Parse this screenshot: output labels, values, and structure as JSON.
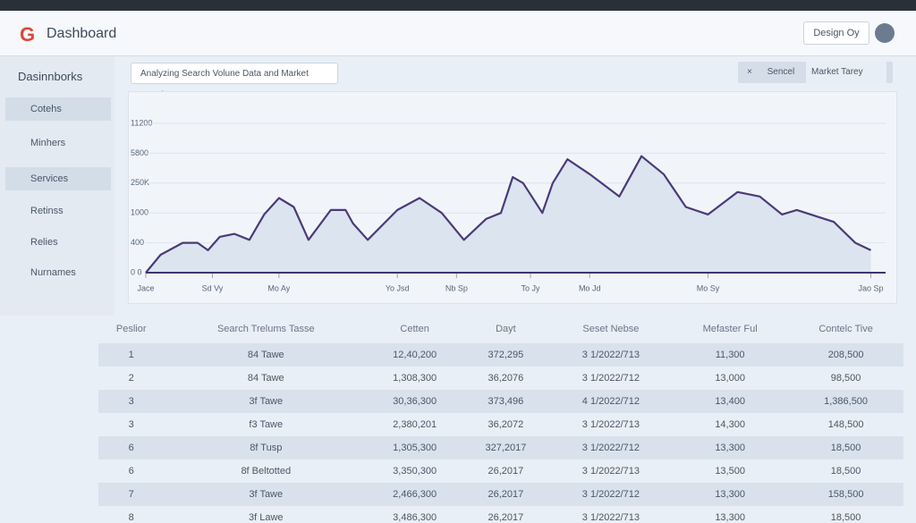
{
  "header": {
    "logo": "G",
    "title": "Dashboard",
    "account": "Design Oy"
  },
  "sidebar": {
    "title": "Dasinnborks",
    "items": [
      "Cotehs",
      "Minhers",
      "Services",
      "Retinss",
      "Relies",
      "Nurnames"
    ]
  },
  "toolbar": {
    "dropdown": "Analyzing Search Volune Data and Market Trends",
    "close": "×",
    "search": "Sencel",
    "filter": "Market Tarey"
  },
  "chart_data": {
    "type": "line",
    "color": "#4b3a78",
    "fill": "#dbe4ef",
    "x": [
      0,
      2,
      5,
      7,
      8.4,
      10,
      12,
      14,
      16,
      18,
      20,
      22,
      25,
      27,
      28,
      30,
      34,
      37,
      40,
      43,
      46,
      48,
      49.6,
      51,
      53.6,
      55,
      57,
      60,
      64,
      67,
      70,
      73,
      76,
      80,
      83,
      86,
      88,
      93,
      95.9,
      98
    ],
    "values": [
      0,
      0.6,
      1.0,
      1.0,
      0.75,
      1.2,
      1.3,
      1.1,
      1.95,
      2.5,
      2.2,
      1.1,
      2.1,
      2.1,
      1.65,
      1.1,
      2.1,
      2.5,
      2.0,
      1.1,
      1.8,
      2.0,
      3.2,
      3.0,
      2.0,
      3.0,
      3.8,
      3.3,
      2.55,
      3.9,
      3.3,
      2.2,
      1.95,
      2.7,
      2.55,
      1.95,
      2.1,
      1.7,
      1.0,
      0.75
    ],
    "xlim": [
      0,
      100
    ],
    "xticks": [
      {
        "value": 0,
        "label": "Jace"
      },
      {
        "value": 9,
        "label": "Sd Vy"
      },
      {
        "value": 18,
        "label": "Mo Ay"
      },
      {
        "value": 34,
        "label": "Yo Jsd"
      },
      {
        "value": 42,
        "label": "Nb Sp"
      },
      {
        "value": 52,
        "label": "To Jy"
      },
      {
        "value": 60,
        "label": "Mo Jd"
      },
      {
        "value": 76,
        "label": "Mo Sy"
      },
      {
        "value": 98,
        "label": "Jao Sp"
      }
    ],
    "ylim": [
      0,
      5.5
    ],
    "yticks": [
      {
        "value": 0,
        "label": "0 0"
      },
      {
        "value": 1,
        "label": "400"
      },
      {
        "value": 2,
        "label": "1000"
      },
      {
        "value": 3,
        "label": "250K"
      },
      {
        "value": 4,
        "label": "5800"
      },
      {
        "value": 5,
        "label": "11200"
      }
    ],
    "grid": true
  },
  "table": {
    "headers": [
      "Peslior",
      "Search Trelums Tasse",
      "Cetten",
      "Dayt",
      "Seset Nebse",
      "Mefaster Ful",
      "Contelc Tive"
    ],
    "rows": [
      [
        "1",
        "84 Tawe",
        "12,40,200",
        "372,295",
        "3 1/2022/713",
        "11,300",
        "208,500"
      ],
      [
        "2",
        "84 Tawe",
        "1,308,300",
        "36,2076",
        "3 1/2022/712",
        "13,000",
        "98,500"
      ],
      [
        "3",
        "3f Tawe",
        "30,36,300",
        "373,496",
        "4 1/2022/712",
        "13,400",
        "1,386,500"
      ],
      [
        "3",
        "f3 Tawe",
        "2,380,201",
        "36,2072",
        "3 1/2022/713",
        "14,300",
        "148,500"
      ],
      [
        "6",
        "8f Tusp",
        "1,305,300",
        "327,2017",
        "3 1/2022/712",
        "13,300",
        "18,500"
      ],
      [
        "6",
        "8f Beltotted",
        "3,350,300",
        "26,2017",
        "3 1/2022/713",
        "13,500",
        "18,500"
      ],
      [
        "7",
        "3f Tawe",
        "2,466,300",
        "26,2017",
        "3 1/2022/712",
        "13,300",
        "158,500"
      ],
      [
        "8",
        "3f Lawe",
        "3,486,300",
        "26,2017",
        "3 1/2022/713",
        "13,300",
        "18,500"
      ]
    ]
  }
}
